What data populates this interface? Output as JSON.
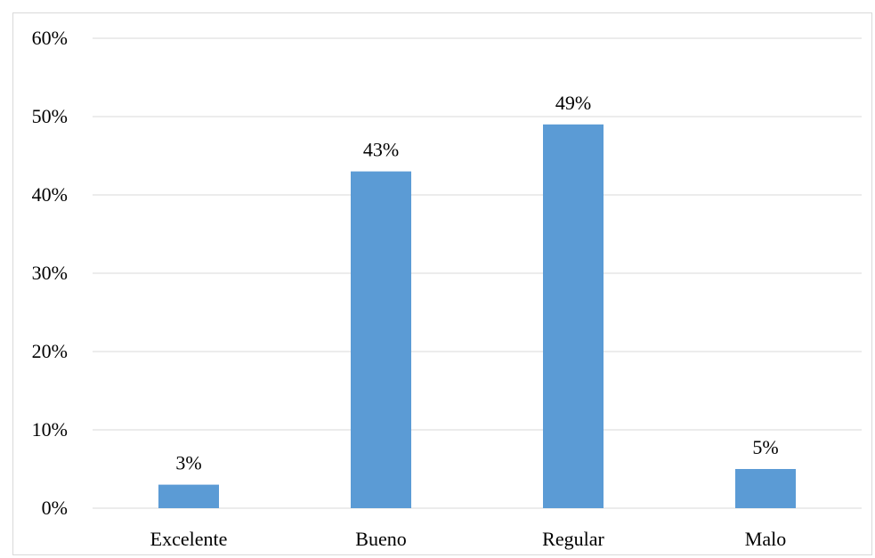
{
  "chart_data": {
    "type": "bar",
    "title": "",
    "xlabel": "",
    "ylabel": "",
    "categories": [
      "Excelente",
      "Bueno",
      "Regular",
      "Malo"
    ],
    "values": [
      3,
      43,
      49,
      5
    ],
    "value_labels": [
      "3%",
      "43%",
      "49%",
      "5%"
    ],
    "ylim": [
      0,
      60
    ],
    "yticks": [
      0,
      10,
      20,
      30,
      40,
      50,
      60
    ],
    "ytick_labels": [
      "0%",
      "10%",
      "20%",
      "30%",
      "40%",
      "50%",
      "60%"
    ],
    "grid": true,
    "legend": "none",
    "bar_color": "#5b9bd5",
    "grid_color": "#d9d9d9"
  }
}
